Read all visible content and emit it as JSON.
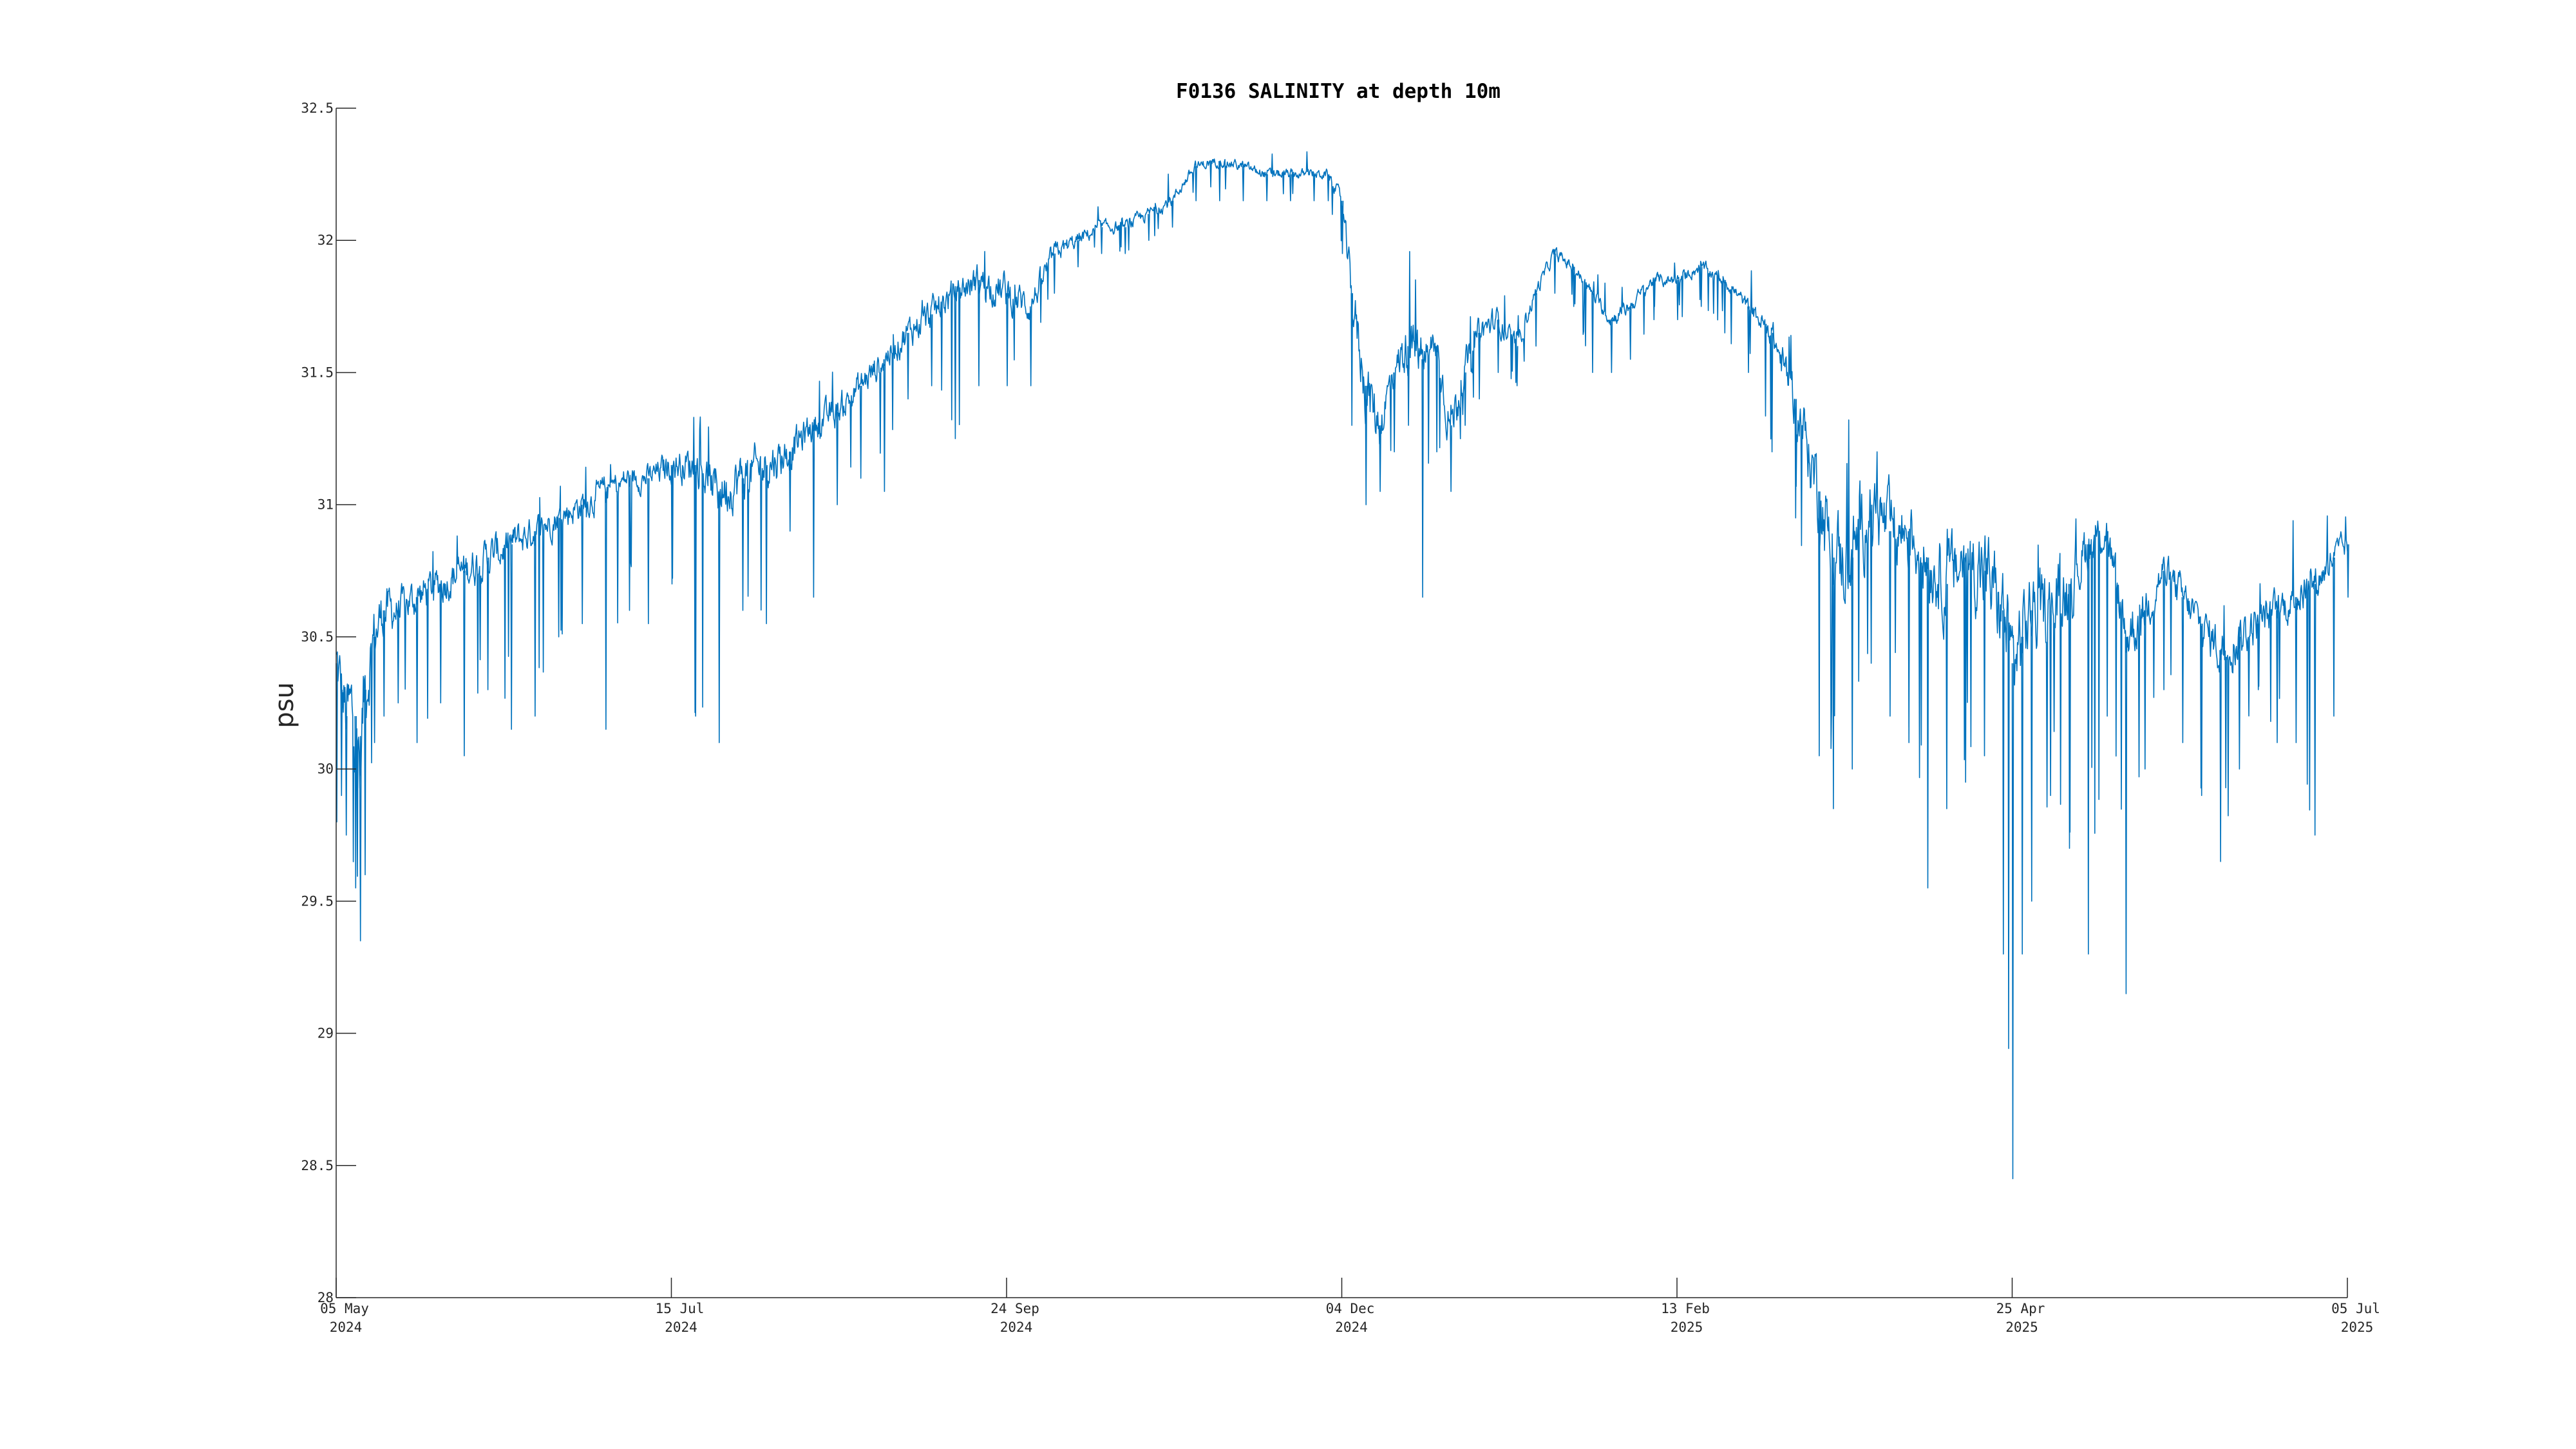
{
  "chart_data": {
    "type": "line",
    "title": "F0136 SALINITY at depth 10m",
    "ylabel": "psu",
    "xlabel": "",
    "ylim": [
      28,
      32.5
    ],
    "xlim": [
      "2024-05-05",
      "2025-07-05"
    ],
    "grid": false,
    "color": "#0072BD",
    "yticks": [
      "28",
      "28.5",
      "29",
      "29.5",
      "30",
      "30.5",
      "31",
      "31.5",
      "32",
      "32.5"
    ],
    "xticks": [
      {
        "date": "2024-05-05",
        "line1": "05 May",
        "line2": "2024"
      },
      {
        "date": "2024-07-15",
        "line1": "15 Jul",
        "line2": "2024"
      },
      {
        "date": "2024-09-24",
        "line1": "24 Sep",
        "line2": "2024"
      },
      {
        "date": "2024-12-04",
        "line1": "04 Dec",
        "line2": "2024"
      },
      {
        "date": "2025-02-13",
        "line1": "13 Feb",
        "line2": "2025"
      },
      {
        "date": "2025-04-25",
        "line1": "25 Apr",
        "line2": "2025"
      },
      {
        "date": "2025-07-05",
        "line1": "05 Jul",
        "line2": "2025"
      }
    ],
    "series": [
      {
        "name": "",
        "x": [
          "2024-05-05",
          "2024-05-06",
          "2024-05-07",
          "2024-05-09",
          "2024-05-10",
          "2024-05-11",
          "2024-05-13",
          "2024-05-15",
          "2024-05-18",
          "2024-05-22",
          "2024-05-27",
          "2024-06-01",
          "2024-06-06",
          "2024-06-11",
          "2024-06-16",
          "2024-06-21",
          "2024-06-26",
          "2024-07-01",
          "2024-07-06",
          "2024-07-10",
          "2024-07-15",
          "2024-07-20",
          "2024-07-25",
          "2024-07-30",
          "2024-08-04",
          "2024-08-09",
          "2024-08-14",
          "2024-08-19",
          "2024-08-24",
          "2024-08-29",
          "2024-09-03",
          "2024-09-08",
          "2024-09-13",
          "2024-09-18",
          "2024-09-24",
          "2024-09-29",
          "2024-10-04",
          "2024-10-09",
          "2024-10-14",
          "2024-10-19",
          "2024-10-24",
          "2024-10-29",
          "2024-11-03",
          "2024-11-08",
          "2024-11-13",
          "2024-11-18",
          "2024-11-23",
          "2024-11-28",
          "2024-12-01",
          "2024-12-04",
          "2024-12-06",
          "2024-12-09",
          "2024-12-12",
          "2024-12-15",
          "2024-12-18",
          "2024-12-21",
          "2024-12-24",
          "2024-12-27",
          "2024-12-30",
          "2025-01-02",
          "2025-01-06",
          "2025-01-10",
          "2025-01-14",
          "2025-01-18",
          "2025-01-22",
          "2025-01-26",
          "2025-01-30",
          "2025-02-03",
          "2025-02-08",
          "2025-02-13",
          "2025-02-18",
          "2025-02-23",
          "2025-02-28",
          "2025-03-05",
          "2025-03-10",
          "2025-03-15",
          "2025-03-18",
          "2025-03-22",
          "2025-03-26",
          "2025-03-30",
          "2025-04-03",
          "2025-04-07",
          "2025-04-11",
          "2025-04-15",
          "2025-04-19",
          "2025-04-23",
          "2025-04-25",
          "2025-04-27",
          "2025-04-29",
          "2025-05-03",
          "2025-05-07",
          "2025-05-11",
          "2025-05-15",
          "2025-05-19",
          "2025-05-23",
          "2025-05-27",
          "2025-05-31",
          "2025-06-04",
          "2025-06-08",
          "2025-06-12",
          "2025-06-16",
          "2025-06-20",
          "2025-06-24",
          "2025-06-28",
          "2025-07-02",
          "2025-07-05"
        ],
        "mean": [
          30.4,
          30.3,
          30.2,
          30.2,
          30.0,
          30.3,
          30.5,
          30.6,
          30.6,
          30.65,
          30.7,
          30.75,
          30.8,
          30.85,
          30.9,
          30.95,
          31.0,
          31.05,
          31.1,
          31.1,
          31.15,
          31.15,
          31.05,
          31.1,
          31.15,
          31.2,
          31.3,
          31.35,
          31.45,
          31.55,
          31.65,
          31.72,
          31.8,
          31.85,
          31.8,
          31.75,
          31.95,
          32.0,
          32.05,
          32.05,
          32.1,
          32.15,
          32.28,
          32.3,
          32.28,
          32.25,
          32.25,
          32.25,
          32.25,
          32.15,
          31.8,
          31.45,
          31.3,
          31.5,
          31.6,
          31.55,
          31.6,
          31.3,
          31.5,
          31.65,
          31.7,
          31.6,
          31.8,
          31.95,
          31.9,
          31.8,
          31.7,
          31.75,
          31.85,
          31.85,
          31.9,
          31.85,
          31.75,
          31.65,
          31.4,
          31.05,
          30.8,
          30.8,
          31.0,
          30.9,
          30.9,
          30.8,
          30.7,
          30.8,
          30.75,
          30.6,
          30.4,
          30.5,
          30.6,
          30.6,
          30.7,
          30.85,
          30.9,
          30.5,
          30.6,
          30.75,
          30.65,
          30.55,
          30.45,
          30.5,
          30.55,
          30.6,
          30.65,
          30.7,
          30.8,
          30.85
        ],
        "noise": [
          0.3,
          0.3,
          0.35,
          0.4,
          0.45,
          0.35,
          0.25,
          0.2,
          0.15,
          0.15,
          0.15,
          0.15,
          0.15,
          0.15,
          0.12,
          0.12,
          0.12,
          0.12,
          0.1,
          0.1,
          0.12,
          0.15,
          0.2,
          0.2,
          0.18,
          0.15,
          0.12,
          0.12,
          0.12,
          0.12,
          0.12,
          0.12,
          0.12,
          0.12,
          0.15,
          0.12,
          0.08,
          0.06,
          0.05,
          0.05,
          0.05,
          0.05,
          0.04,
          0.04,
          0.04,
          0.04,
          0.04,
          0.04,
          0.04,
          0.06,
          0.2,
          0.25,
          0.2,
          0.15,
          0.2,
          0.2,
          0.15,
          0.2,
          0.15,
          0.12,
          0.1,
          0.08,
          0.06,
          0.05,
          0.05,
          0.05,
          0.06,
          0.06,
          0.05,
          0.05,
          0.05,
          0.05,
          0.06,
          0.1,
          0.2,
          0.3,
          0.35,
          0.35,
          0.3,
          0.3,
          0.3,
          0.3,
          0.3,
          0.3,
          0.35,
          0.35,
          0.4,
          0.35,
          0.3,
          0.3,
          0.3,
          0.2,
          0.15,
          0.25,
          0.2,
          0.15,
          0.15,
          0.15,
          0.2,
          0.2,
          0.15,
          0.15,
          0.15,
          0.15,
          0.12,
          0.1
        ],
        "min": [
          29.8,
          29.9,
          29.75,
          29.55,
          29.35,
          29.6,
          30.1,
          30.2,
          30.25,
          30.1,
          30.25,
          30.05,
          30.3,
          30.15,
          30.2,
          30.5,
          30.55,
          30.15,
          30.6,
          30.55,
          30.7,
          30.2,
          30.1,
          30.6,
          30.55,
          30.9,
          30.65,
          31.0,
          31.1,
          31.05,
          31.4,
          31.45,
          31.25,
          31.45,
          31.45,
          31.45,
          31.8,
          31.9,
          31.95,
          31.95,
          32.0,
          32.05,
          32.15,
          32.15,
          32.15,
          32.15,
          32.15,
          32.15,
          32.15,
          31.95,
          31.3,
          31.0,
          31.05,
          31.2,
          31.3,
          30.65,
          31.2,
          31.05,
          31.3,
          31.4,
          31.5,
          31.45,
          31.6,
          31.8,
          31.75,
          31.5,
          31.5,
          31.55,
          31.7,
          31.7,
          31.75,
          31.65,
          31.5,
          31.2,
          30.95,
          30.05,
          29.85,
          30.0,
          30.4,
          30.2,
          30.1,
          29.55,
          29.85,
          29.95,
          30.05,
          29.3,
          28.45,
          29.3,
          29.5,
          29.9,
          29.7,
          29.3,
          30.2,
          29.15,
          30.0,
          30.3,
          30.1,
          29.9,
          29.65,
          30.0,
          30.3,
          30.1,
          30.1,
          29.75,
          30.2,
          30.65
        ],
        "max": [
          30.65,
          30.6,
          30.5,
          30.55,
          30.45,
          30.5,
          30.72,
          30.75,
          30.75,
          30.85,
          30.85,
          30.95,
          30.95,
          31.0,
          31.05,
          31.1,
          31.15,
          31.2,
          31.25,
          31.25,
          31.4,
          31.35,
          31.3,
          31.3,
          31.35,
          31.4,
          31.45,
          31.55,
          31.6,
          31.7,
          31.8,
          31.85,
          31.95,
          32.0,
          32.05,
          32.0,
          32.05,
          32.08,
          32.15,
          32.12,
          32.2,
          32.3,
          32.38,
          32.45,
          32.38,
          32.35,
          32.33,
          32.35,
          32.37,
          32.3,
          32.05,
          31.8,
          31.55,
          31.75,
          32.1,
          31.85,
          31.8,
          31.5,
          31.75,
          31.8,
          31.85,
          31.75,
          31.95,
          32.02,
          31.98,
          31.9,
          31.85,
          31.88,
          31.95,
          31.95,
          32.0,
          31.95,
          31.9,
          31.8,
          31.65,
          31.35,
          31.2,
          31.5,
          31.45,
          31.4,
          31.3,
          31.15,
          31.0,
          31.05,
          31.05,
          30.95,
          30.8,
          31.05,
          30.9,
          30.9,
          30.95,
          30.95,
          30.95,
          30.75,
          30.85,
          30.9,
          30.85,
          30.75,
          30.7,
          30.7,
          30.8,
          30.9,
          30.95,
          31.0,
          31.0,
          30.95
        ]
      }
    ]
  }
}
